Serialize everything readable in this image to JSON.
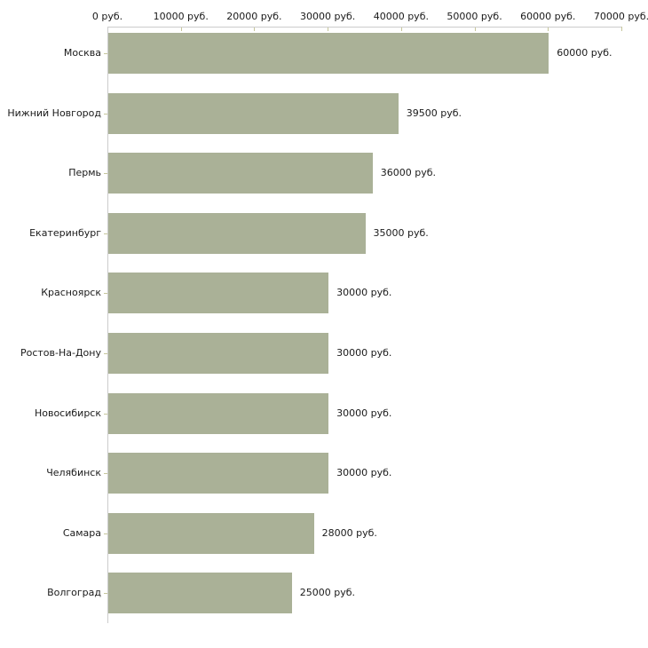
{
  "chart_data": {
    "type": "bar",
    "orientation": "horizontal",
    "title": "",
    "xlabel": "",
    "ylabel": "",
    "unit": "руб.",
    "categories": [
      "Москва",
      "Нижний Новгород",
      "Пермь",
      "Екатеринбург",
      "Красноярск",
      "Ростов-На-Дону",
      "Новосибирск",
      "Челябинск",
      "Самара",
      "Волгоград"
    ],
    "values": [
      60000,
      39500,
      36000,
      35000,
      30000,
      30000,
      30000,
      30000,
      28000,
      25000
    ],
    "value_labels": [
      "60000 руб.",
      "39500 руб.",
      "36000 руб.",
      "35000 руб.",
      "30000 руб.",
      "30000 руб.",
      "30000 руб.",
      "30000 руб.",
      "28000 руб.",
      "25000 руб."
    ],
    "x_ticks": [
      0,
      10000,
      20000,
      30000,
      40000,
      50000,
      60000,
      70000
    ],
    "x_tick_labels": [
      "0 руб.",
      "10000 руб.",
      "20000 руб.",
      "30000 руб.",
      "40000 руб.",
      "50000 руб.",
      "60000 руб.",
      "70000 руб."
    ],
    "xlim": [
      0,
      70000
    ],
    "grid": false,
    "legend": false,
    "colors": {
      "bar": "#aab197",
      "axis_line": "#cccccc",
      "tick_mark": "#c6c69b",
      "text": "#1a1a1a",
      "background": "#ffffff"
    }
  }
}
